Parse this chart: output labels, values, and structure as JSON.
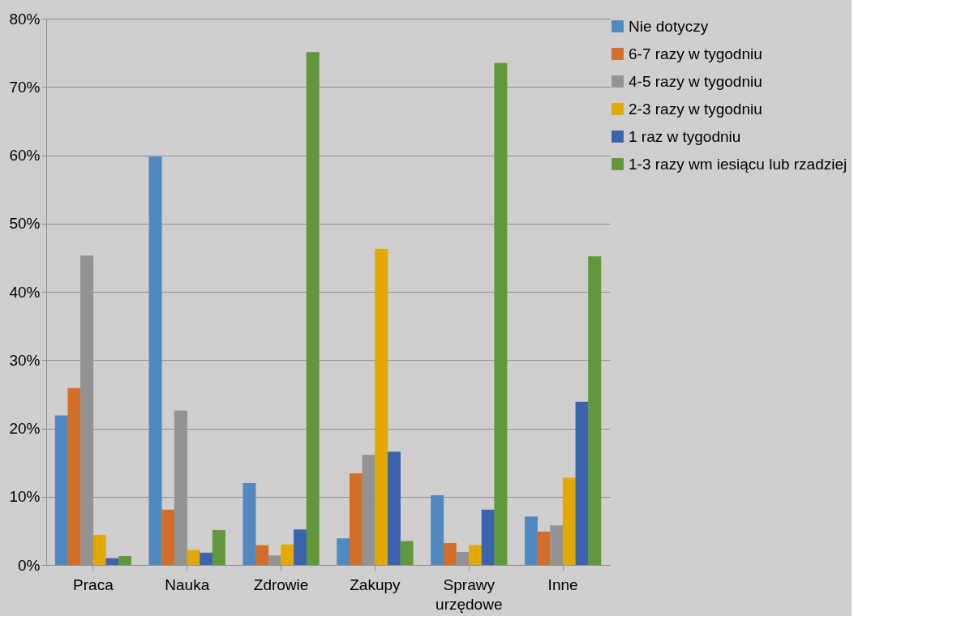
{
  "chart_data": {
    "type": "bar",
    "categories": [
      "Praca",
      "Nauka",
      "Zdrowie",
      "Zakupy",
      "Sprawy urzędowe",
      "Inne"
    ],
    "series": [
      {
        "name": "Nie dotyczy",
        "color": "#5089bf",
        "values": [
          21.9,
          59.8,
          12.0,
          3.9,
          10.2,
          7.1
        ]
      },
      {
        "name": "6-7 razy w tygodniu",
        "color": "#d36e2a",
        "values": [
          25.9,
          8.1,
          2.9,
          13.4,
          3.2,
          4.9
        ]
      },
      {
        "name": "4-5 razy w tygodniu",
        "color": "#939393",
        "values": [
          45.3,
          22.6,
          1.4,
          16.1,
          1.9,
          5.8
        ]
      },
      {
        "name": "2-3 razy w tygodniu",
        "color": "#e2aa00",
        "values": [
          4.4,
          2.2,
          3.0,
          46.3,
          2.9,
          12.8
        ]
      },
      {
        "name": "1 raz w tygodniu",
        "color": "#3c63ad",
        "values": [
          1.0,
          1.8,
          5.2,
          16.6,
          8.1,
          23.9
        ]
      },
      {
        "name": "1-3 razy wm iesiącu lub rzadziej",
        "color": "#62983d",
        "values": [
          1.3,
          5.1,
          75.1,
          3.5,
          73.5,
          45.2
        ]
      }
    ],
    "ylim": [
      0,
      80
    ],
    "yticks": [
      {
        "value": 0,
        "label": "0%"
      },
      {
        "value": 10,
        "label": "10%"
      },
      {
        "value": 20,
        "label": "20%"
      },
      {
        "value": 30,
        "label": "30%"
      },
      {
        "value": 40,
        "label": "40%"
      },
      {
        "value": 50,
        "label": "50%"
      },
      {
        "value": 60,
        "label": "60%"
      },
      {
        "value": 70,
        "label": "70%"
      },
      {
        "value": 80,
        "label": "80%"
      }
    ],
    "grid": "y",
    "legend": "right"
  }
}
